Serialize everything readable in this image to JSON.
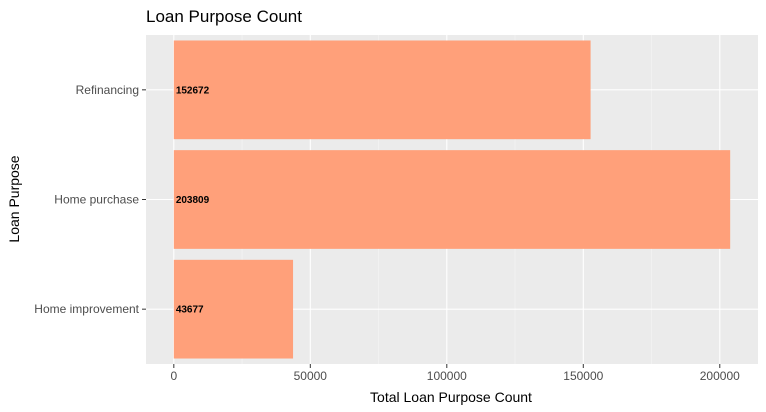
{
  "chart_data": {
    "type": "bar",
    "orientation": "horizontal",
    "title": "Loan Purpose Count",
    "xlabel": "Total Loan Purpose Count",
    "ylabel": "Loan Purpose",
    "categories": [
      "Refinancing",
      "Home purchase",
      "Home improvement"
    ],
    "values": [
      152672,
      203809,
      43677
    ],
    "value_labels": [
      "152672",
      "203809",
      "43677"
    ],
    "xlim": [
      -10190,
      214000
    ],
    "xticks": [
      0,
      50000,
      100000,
      150000,
      200000
    ],
    "xtick_labels": [
      "0",
      "50000",
      "100000",
      "150000",
      "200000"
    ],
    "grid": true,
    "legend": "none",
    "colors": {
      "bar": "#FFA07A",
      "panel_background": "#EBEBEB",
      "grid_major": "#FFFFFF",
      "grid_minor": "#F5F5F5"
    }
  }
}
